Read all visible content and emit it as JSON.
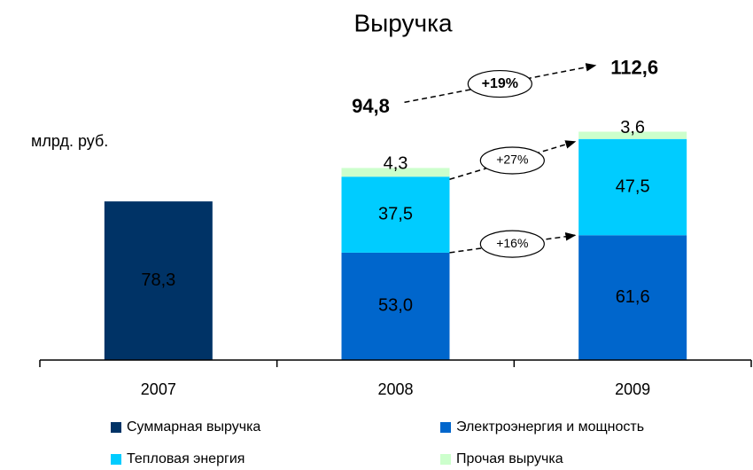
{
  "chart_data": {
    "type": "stacked_bar",
    "title": "Выручка",
    "unit_label": "млрд. руб.",
    "categories": [
      "2007",
      "2008",
      "2009"
    ],
    "ylim": [
      0,
      130
    ],
    "series": [
      {
        "name": "Суммарная выручка",
        "color": "#003366",
        "values": [
          78.3,
          null,
          null
        ],
        "value_labels": [
          "78,3",
          null,
          null
        ]
      },
      {
        "name": "Электроэнергия и мощность",
        "color": "#0066CC",
        "values": [
          null,
          53.0,
          61.6
        ],
        "value_labels": [
          null,
          "53,0",
          "61,6"
        ]
      },
      {
        "name": "Тепловая энергия",
        "color": "#00CCFF",
        "values": [
          null,
          37.5,
          47.5
        ],
        "value_labels": [
          null,
          "37,5",
          "47,5"
        ]
      },
      {
        "name": "Прочая выручка",
        "color": "#CCFFCC",
        "values": [
          null,
          4.3,
          3.6
        ],
        "value_labels": [
          null,
          "4,3",
          "3,6"
        ]
      }
    ],
    "totals": {
      "values": [
        null,
        94.8,
        112.6
      ],
      "value_labels": [
        null,
        "94,8",
        "112,6"
      ]
    },
    "annotations": [
      "+19%",
      "+27%",
      "+16%"
    ]
  }
}
